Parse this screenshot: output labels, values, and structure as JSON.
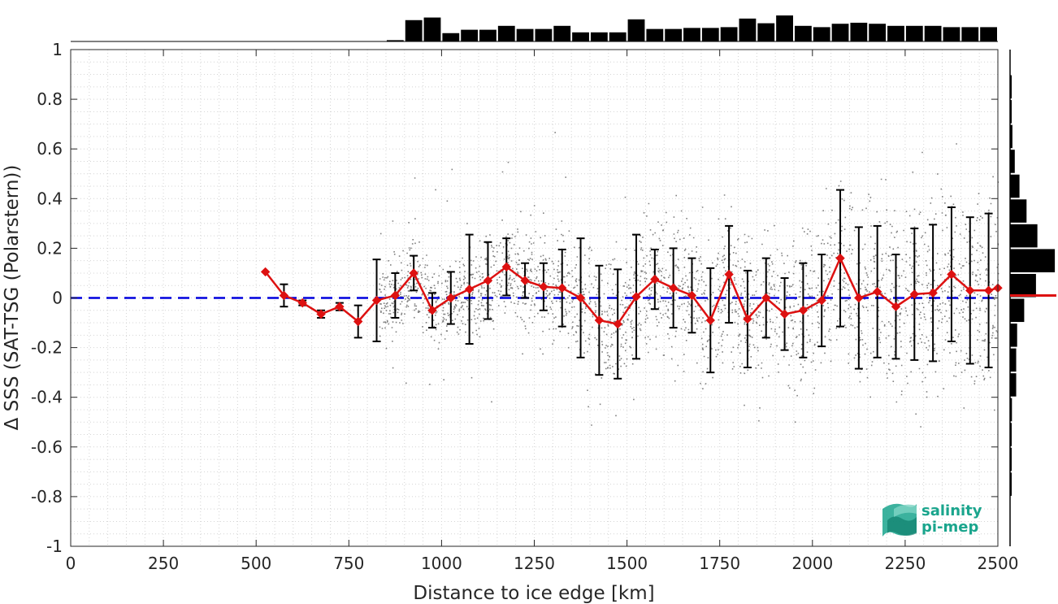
{
  "chart_data": {
    "type": "line",
    "xlabel": "Distance to ice edge [km]",
    "ylabel": "Δ SSS (SAT-TSG (Polarstern))",
    "xlim": [
      0,
      2500
    ],
    "ylim": [
      -1,
      1
    ],
    "xticks": [
      "0",
      "250",
      "500",
      "750",
      "1000",
      "1250",
      "1500",
      "1750",
      "2000",
      "2250",
      "2500"
    ],
    "yticks": [
      "1",
      "0.8",
      "0.6",
      "0.4",
      "0.2",
      "0",
      "-0.2",
      "-0.4",
      "-0.6",
      "-0.8",
      "-1"
    ],
    "grid": true,
    "reference_line": {
      "y": 0,
      "style": "dashed",
      "color": "#0000dd"
    },
    "series": [
      {
        "color": "#dd1111",
        "marker": "diamond",
        "x": [
          525,
          575,
          625,
          675,
          725,
          775,
          825,
          875,
          925,
          975,
          1025,
          1075,
          1125,
          1175,
          1225,
          1275,
          1325,
          1375,
          1425,
          1475,
          1525,
          1575,
          1625,
          1675,
          1725,
          1775,
          1825,
          1875,
          1925,
          1975,
          2025,
          2075,
          2125,
          2175,
          2225,
          2275,
          2325,
          2375,
          2425,
          2475,
          2500
        ],
        "y": [
          0.105,
          0.01,
          -0.02,
          -0.065,
          -0.035,
          -0.095,
          -0.01,
          0.01,
          0.1,
          -0.05,
          0.0,
          0.035,
          0.07,
          0.125,
          0.07,
          0.045,
          0.04,
          0.0,
          -0.09,
          -0.105,
          0.005,
          0.075,
          0.04,
          0.01,
          -0.09,
          0.095,
          -0.085,
          0.0,
          -0.065,
          -0.05,
          -0.01,
          0.16,
          0.0,
          0.025,
          -0.035,
          0.015,
          0.02,
          0.095,
          0.03,
          0.03,
          0.04
        ],
        "err": [
          0.0,
          0.045,
          0.01,
          0.015,
          0.015,
          0.065,
          0.165,
          0.09,
          0.07,
          0.07,
          0.105,
          0.22,
          0.155,
          0.115,
          0.07,
          0.095,
          0.155,
          0.24,
          0.22,
          0.22,
          0.25,
          0.12,
          0.16,
          0.15,
          0.21,
          0.195,
          0.195,
          0.16,
          0.145,
          0.19,
          0.185,
          0.275,
          0.285,
          0.265,
          0.21,
          0.265,
          0.275,
          0.27,
          0.295,
          0.31,
          0.0
        ]
      }
    ],
    "top_histogram": {
      "bin_width": 50,
      "x_start": 0,
      "counts": [
        0.02,
        0.02,
        0.02,
        0.02,
        0.02,
        0.02,
        0.02,
        0.02,
        0.02,
        0.02,
        0.02,
        0.02,
        0.02,
        0.02,
        0.02,
        0.02,
        0.02,
        0.05,
        0.82,
        0.92,
        0.32,
        0.45,
        0.45,
        0.6,
        0.48,
        0.48,
        0.6,
        0.35,
        0.35,
        0.35,
        0.85,
        0.48,
        0.48,
        0.52,
        0.52,
        0.55,
        0.88,
        0.7,
        1.0,
        0.6,
        0.55,
        0.68,
        0.72,
        0.68,
        0.6,
        0.6,
        0.6,
        0.55,
        0.55,
        0.55
      ]
    },
    "right_histogram": {
      "bin_width": 0.1,
      "y_start": -1,
      "counts": [
        0.0,
        0.0,
        0.01,
        0.01,
        0.02,
        0.04,
        0.13,
        0.13,
        0.15,
        0.3,
        0.55,
        0.95,
        0.58,
        0.35,
        0.2,
        0.1,
        0.05,
        0.02,
        0.01,
        0.0
      ],
      "median_line": {
        "y": 0.01,
        "color": "#dd1111"
      }
    }
  },
  "logo": {
    "line1": "salinity",
    "line2": "pi-mep",
    "color": "#1aa58d"
  }
}
